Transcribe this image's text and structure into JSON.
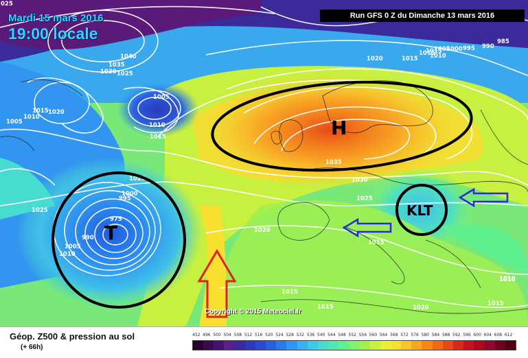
{
  "header": {
    "date": "Mardi 15 mars 2016",
    "time": "19:00 locale",
    "run": "Run GFS 0 Z du Dimanche 13 mars 2016"
  },
  "copyright": "Copyright © 2015 Meteociel.fr",
  "legend": {
    "title": "Géop. Z500 & pression au sol",
    "subtitle": "(+ 66h)",
    "ticks": [
      "452",
      "496",
      "500",
      "504",
      "508",
      "512",
      "516",
      "520",
      "524",
      "528",
      "532",
      "536",
      "540",
      "544",
      "548",
      "552",
      "556",
      "560",
      "564",
      "568",
      "572",
      "576",
      "580",
      "584",
      "588",
      "592",
      "596",
      "600",
      "604",
      "608",
      "612"
    ],
    "colors": [
      "#2a0030",
      "#3b0a50",
      "#4a1070",
      "#5a2090",
      "#3a2aa0",
      "#2a3ab8",
      "#2a4ad0",
      "#2a60e0",
      "#2a7ae8",
      "#3296f0",
      "#3ab0f0",
      "#40c8e8",
      "#48dcd0",
      "#50e8b0",
      "#60f090",
      "#80f070",
      "#a0f050",
      "#c8f040",
      "#e8f038",
      "#f8e030",
      "#f8c828",
      "#f8a820",
      "#f88818",
      "#f06818",
      "#e84818",
      "#d82818",
      "#c81020",
      "#b00820",
      "#900830",
      "#700020",
      "#500010"
    ]
  },
  "map_marks": {
    "high": "H",
    "low": "T",
    "cutoff": "KLT"
  },
  "pressure_labels": [
    "025",
    "1040",
    "1035",
    "1030",
    "1025",
    "1005",
    "1015",
    "1020",
    "1010",
    "1005",
    "1010",
    "1015",
    "1025",
    "1020",
    "1035",
    "1030",
    "1025",
    "1015",
    "1015",
    "1005",
    "1000",
    "995",
    "990",
    "985",
    "1015",
    "1010",
    "1025",
    "1020",
    "1015",
    "1010",
    "1015",
    "1000",
    "995",
    "975",
    "1005",
    "1010",
    "990",
    "1020",
    "1015",
    "1010",
    "1015"
  ]
}
